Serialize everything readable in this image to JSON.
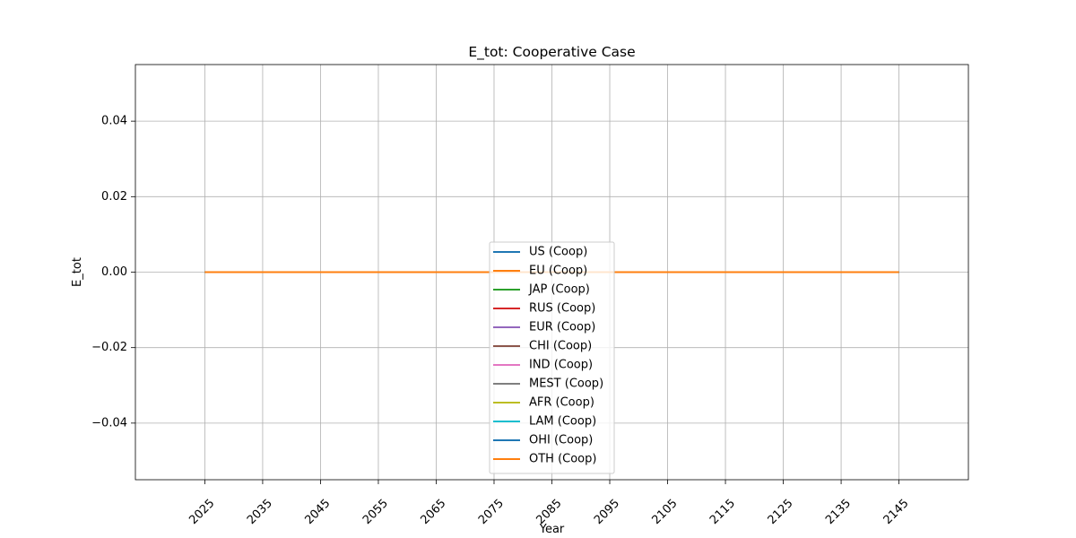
{
  "chart_data": {
    "type": "line",
    "title": "E_tot: Cooperative Case",
    "xlabel": "Year",
    "ylabel": "E_tot",
    "xlim": [
      2013,
      2157
    ],
    "ylim": [
      -0.055,
      0.055
    ],
    "x_ticks": [
      2025,
      2035,
      2045,
      2055,
      2065,
      2075,
      2085,
      2095,
      2105,
      2115,
      2125,
      2135,
      2145
    ],
    "x_tick_labels": [
      "2025",
      "2035",
      "2045",
      "2055",
      "2065",
      "2075",
      "2085",
      "2095",
      "2105",
      "2115",
      "2125",
      "2135",
      "2145"
    ],
    "y_ticks": [
      -0.04,
      -0.02,
      0.0,
      0.02,
      0.04
    ],
    "y_tick_labels": [
      "−0.04",
      "−0.02",
      "0.00",
      "0.02",
      "0.04"
    ],
    "grid": true,
    "legend_position": "bottom-center",
    "x": [
      2025,
      2035,
      2045,
      2055,
      2065,
      2075,
      2085,
      2095,
      2105,
      2115,
      2125,
      2135,
      2145
    ],
    "series": [
      {
        "name": "US (Coop)",
        "color": "#1f77b4",
        "values": [
          0,
          0,
          0,
          0,
          0,
          0,
          0,
          0,
          0,
          0,
          0,
          0,
          0
        ]
      },
      {
        "name": "EU (Coop)",
        "color": "#ff7f0e",
        "values": [
          0,
          0,
          0,
          0,
          0,
          0,
          0,
          0,
          0,
          0,
          0,
          0,
          0
        ]
      },
      {
        "name": "JAP (Coop)",
        "color": "#2ca02c",
        "values": [
          0,
          0,
          0,
          0,
          0,
          0,
          0,
          0,
          0,
          0,
          0,
          0,
          0
        ]
      },
      {
        "name": "RUS (Coop)",
        "color": "#d62728",
        "values": [
          0,
          0,
          0,
          0,
          0,
          0,
          0,
          0,
          0,
          0,
          0,
          0,
          0
        ]
      },
      {
        "name": "EUR (Coop)",
        "color": "#9467bd",
        "values": [
          0,
          0,
          0,
          0,
          0,
          0,
          0,
          0,
          0,
          0,
          0,
          0,
          0
        ]
      },
      {
        "name": "CHI (Coop)",
        "color": "#8c564b",
        "values": [
          0,
          0,
          0,
          0,
          0,
          0,
          0,
          0,
          0,
          0,
          0,
          0,
          0
        ]
      },
      {
        "name": "IND (Coop)",
        "color": "#e377c2",
        "values": [
          0,
          0,
          0,
          0,
          0,
          0,
          0,
          0,
          0,
          0,
          0,
          0,
          0
        ]
      },
      {
        "name": "MEST (Coop)",
        "color": "#7f7f7f",
        "values": [
          0,
          0,
          0,
          0,
          0,
          0,
          0,
          0,
          0,
          0,
          0,
          0,
          0
        ]
      },
      {
        "name": "AFR (Coop)",
        "color": "#bcbd22",
        "values": [
          0,
          0,
          0,
          0,
          0,
          0,
          0,
          0,
          0,
          0,
          0,
          0,
          0
        ]
      },
      {
        "name": "LAM (Coop)",
        "color": "#17becf",
        "values": [
          0,
          0,
          0,
          0,
          0,
          0,
          0,
          0,
          0,
          0,
          0,
          0,
          0
        ]
      },
      {
        "name": "OHI (Coop)",
        "color": "#1f77b4",
        "values": [
          0,
          0,
          0,
          0,
          0,
          0,
          0,
          0,
          0,
          0,
          0,
          0,
          0
        ]
      },
      {
        "name": "OTH (Coop)",
        "color": "#ff7f0e",
        "values": [
          0,
          0,
          0,
          0,
          0,
          0,
          0,
          0,
          0,
          0,
          0,
          0,
          0
        ]
      }
    ]
  }
}
